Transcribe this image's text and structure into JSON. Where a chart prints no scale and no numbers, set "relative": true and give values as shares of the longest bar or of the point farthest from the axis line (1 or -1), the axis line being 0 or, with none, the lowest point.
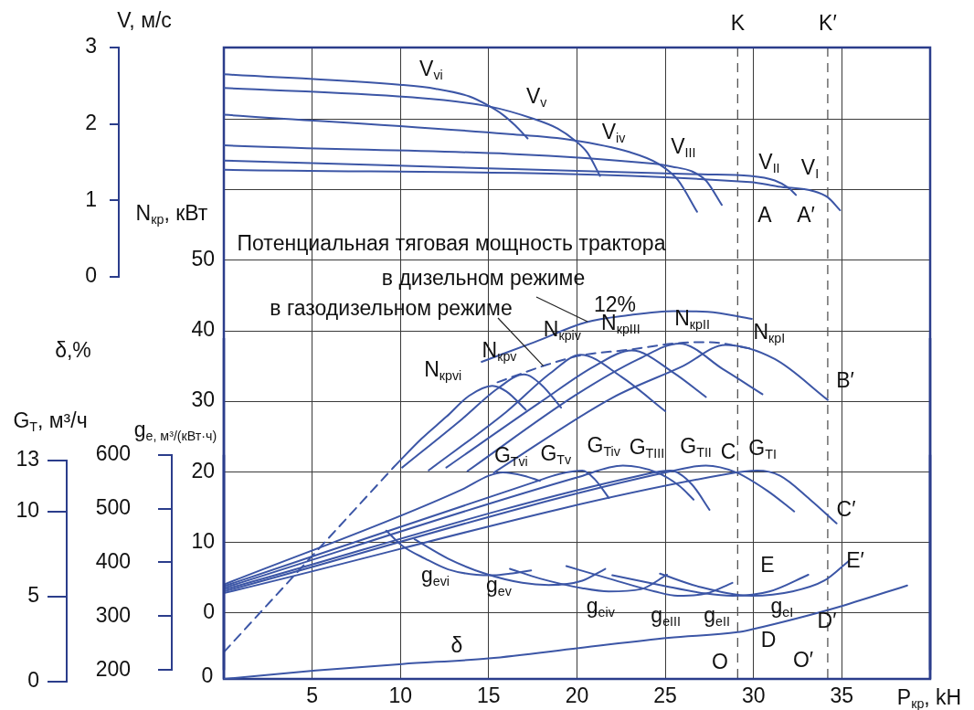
{
  "chart_data": [
    {
      "type": "line",
      "xlabel": "P$_{кр}$, kH",
      "ylabel": "N$_{кр}$, кВт",
      "y2label": "V, м/с",
      "y3label": "G$_{T}$, м³/ч",
      "xlim": [
        0,
        40
      ],
      "xticks": [
        5,
        10,
        15,
        20,
        25,
        30,
        35
      ],
      "ylim": [
        -9.4,
        80.2
      ],
      "yticks": [
        0,
        10,
        20,
        30,
        40,
        50,
        {
          "value": 60,
          "label": null
        },
        {
          "value": 70,
          "label": null
        }
      ],
      "y2lim": [
        0,
        3
      ],
      "y2ticks": [
        0,
        1,
        2,
        3
      ],
      "y3lim": [
        0,
        13
      ],
      "y3ticks": [
        0,
        5,
        10,
        13
      ],
      "grid": true,
      "marker": "none",
      "ref_lines": [
        {
          "axis": "x",
          "value": 29.1,
          "label": "K",
          "color": "#555555",
          "line_style": "dashed"
        },
        {
          "axis": "x",
          "value": 34.2,
          "label": "K′",
          "color": "#555555",
          "line_style": "dashed"
        }
      ],
      "series": [
        {
          "name": "V$_{vi}$",
          "axis": "y2",
          "color": "#3c56a6",
          "x": [
            0,
            10.1,
            12.0,
            13.9,
            14.9,
            15.8,
            16.5,
            17.2
          ],
          "values": [
            2.65,
            2.51,
            2.46,
            2.36,
            2.25,
            2.12,
            1.98,
            1.81
          ]
        },
        {
          "name": "V$_{v}$",
          "axis": "y2",
          "color": "#3c56a6",
          "x": [
            0,
            10.5,
            15.0,
            17.5,
            18.9,
            19.9,
            20.6,
            21.3
          ],
          "values": [
            2.47,
            2.35,
            2.23,
            2.07,
            1.94,
            1.78,
            1.62,
            1.32
          ]
        },
        {
          "name": "V$_{iv}$",
          "axis": "y2",
          "color": "#3c56a6",
          "x": [
            0,
            16.0,
            19.7,
            23.0,
            24.6,
            25.7,
            26.8
          ],
          "values": [
            2.12,
            1.87,
            1.79,
            1.63,
            1.48,
            1.27,
            0.85
          ]
        },
        {
          "name": "V$_{III}$",
          "axis": "y2",
          "color": "#3c56a6",
          "x": [
            0,
            24.3,
            25.4,
            26.5,
            27.3,
            28.2
          ],
          "values": [
            1.72,
            1.48,
            1.44,
            1.38,
            1.26,
            0.94
          ]
        },
        {
          "name": "V$_{II}$",
          "axis": "y2",
          "color": "#3c56a6",
          "x": [
            0,
            27.1,
            29.8,
            31.2,
            32.0,
            32.4
          ],
          "values": [
            1.52,
            1.34,
            1.32,
            1.26,
            1.16,
            1.07
          ]
        },
        {
          "name": "V$_{I}$",
          "axis": "y2",
          "color": "#3c56a6",
          "x": [
            0,
            29.8,
            31.4,
            33.4,
            34.2,
            34.9
          ],
          "values": [
            1.4,
            1.24,
            1.18,
            1.12,
            1.04,
            0.87
          ]
        },
        {
          "color": "#3c56a6",
          "x": [
            14.6,
            17.6,
            20.5,
            22.9,
            25.5,
            27.4,
            29.9
          ],
          "values": [
            35.6,
            38.4,
            41.2,
            42.2,
            42.8,
            42.7,
            41.7
          ]
        },
        {
          "color": "#3c56a6",
          "line_style": "dashed",
          "x": [
            15.5,
            18.2,
            20.2,
            22.9,
            25.5,
            27.4,
            29.8
          ],
          "values": [
            32.7,
            35.1,
            36.5,
            37.3,
            38.2,
            38.4,
            37.5
          ]
        },
        {
          "name": "N$_{крvi}$",
          "color": "#3c56a6",
          "x": [
            9.6,
            11.2,
            12.6,
            13.9,
            15.2,
            16.0,
            17.1
          ],
          "values": [
            20.6,
            24.7,
            27.8,
            30.8,
            32.2,
            31.4,
            28.8
          ]
        },
        {
          "name": "N$_{крv}$",
          "color": "#3c56a6",
          "x": [
            10.1,
            13.5,
            15.5,
            17.0,
            18.0,
            19.1
          ],
          "values": [
            20.6,
            27.5,
            31.8,
            33.8,
            32.3,
            29.1
          ]
        },
        {
          "name": "N$_{крiv}$",
          "color": "#3c56a6",
          "x": [
            11.6,
            16.0,
            18.5,
            20.2,
            22.5,
            25.0
          ],
          "values": [
            20.2,
            28.5,
            34.0,
            36.6,
            33.5,
            28.6
          ]
        },
        {
          "name": "N$_{крIII}$",
          "color": "#3c56a6",
          "x": [
            12.6,
            18.0,
            21.0,
            23.1,
            25.5,
            27.3
          ],
          "values": [
            20.6,
            30.0,
            35.0,
            37.2,
            34.0,
            30.6
          ]
        },
        {
          "name": "N$_{крII}$",
          "color": "#3c56a6",
          "x": [
            13.8,
            20.0,
            23.5,
            25.8,
            28.3,
            30.5
          ],
          "values": [
            20.1,
            31.0,
            36.0,
            38.2,
            34.5,
            31.0
          ]
        },
        {
          "name": "N$_{крI}$",
          "color": "#3c56a6",
          "x": [
            15.3,
            22.0,
            26.0,
            28.4,
            31.2,
            34.2
          ],
          "values": [
            19.9,
            30.5,
            35.0,
            38.0,
            36.0,
            30.2
          ]
        },
        {
          "color": "#3c56a6",
          "line_style": "dashed",
          "x": [
            0,
            9.6
          ],
          "values": [
            -5.6,
            20.6
          ]
        },
        {
          "name": "G$_{Tvi}$",
          "axis": "y3",
          "color": "#3c56a6",
          "x": [
            0,
            13.5,
            15.0,
            15.8,
            17.0,
            17.9
          ],
          "values": [
            5.7,
            11.3,
            12.1,
            12.3,
            12.1,
            11.8
          ]
        },
        {
          "name": "G$_{Tv}$",
          "axis": "y3",
          "color": "#3c56a6",
          "x": [
            0,
            17.5,
            19.0,
            20.3,
            21.0,
            21.8
          ],
          "values": [
            5.6,
            11.7,
            12.2,
            12.4,
            11.9,
            10.8
          ]
        },
        {
          "name": "G$_{Tiv}$",
          "axis": "y3",
          "color": "#3c56a6",
          "x": [
            0,
            20.0,
            22.6,
            24.5,
            25.8,
            26.6
          ],
          "values": [
            5.5,
            12.0,
            12.7,
            12.3,
            11.5,
            10.7
          ]
        },
        {
          "name": "G$_{TIII}$",
          "axis": "y3",
          "color": "#3c56a6",
          "x": [
            0,
            23.5,
            25.3,
            26.5,
            27.5
          ],
          "values": [
            5.4,
            12.1,
            12.4,
            11.6,
            10.1
          ]
        },
        {
          "name": "G$_{TII}$",
          "axis": "y3",
          "color": "#3c56a6",
          "x": [
            0,
            25.5,
            27.3,
            29.0,
            30.8,
            32.3
          ],
          "values": [
            5.3,
            12.4,
            12.7,
            12.3,
            11.2,
            10.0
          ]
        },
        {
          "name": "G$_{TI}$",
          "axis": "y3",
          "color": "#3c56a6",
          "x": [
            0,
            28.5,
            30.2,
            31.5,
            33.2,
            34.7
          ],
          "values": [
            5.2,
            12.2,
            12.4,
            12.1,
            10.7,
            9.3
          ]
        }
      ],
      "annotations": [
        "A",
        "A′",
        "Потенциальная тяговая мощность трактора",
        {
          "text": "в дизельном режиме",
          "x": 20.6,
          "y": 41.3
        },
        {
          "text": "в газодизельном режиме",
          "x": 18.1,
          "y": 35.0
        },
        "12%",
        "B′",
        "C",
        "C′"
      ]
    },
    {
      "type": "line",
      "ylabel": "g$_{e, м³/(кВт·ч)}$",
      "xlim": [
        0,
        40
      ],
      "ylim": [
        200,
        600
      ],
      "yticks": [
        200,
        300,
        400,
        500,
        600
      ],
      "tick_labels": "y",
      "marker": "none",
      "series": [
        {
          "name": "g$_{evi}$",
          "color": "#3c56a6",
          "x": [
            9.2,
            10.1,
            11.4,
            12.7,
            14.3,
            15.3,
            16.2,
            17.4
          ],
          "values": [
            459,
            431,
            407,
            387,
            377,
            376,
            379,
            385
          ]
        },
        {
          "name": "g$_{ev}$",
          "color": "#3c56a6",
          "x": [
            10.8,
            12.7,
            14.8,
            16.9,
            18.4,
            20.3,
            21.6
          ],
          "values": [
            443,
            407,
            379,
            362,
            358,
            366,
            388
          ]
        },
        {
          "name": "g$_{eiv}$",
          "color": "#3c56a6",
          "x": [
            16.2,
            17.9,
            20.3,
            21.8,
            23.6,
            25.1
          ],
          "values": [
            388,
            370,
            352,
            346,
            350,
            377
          ]
        },
        {
          "name": "g$_{eIII}$",
          "color": "#3c56a6",
          "x": [
            19.4,
            21.8,
            24.4,
            25.7,
            27.3,
            28.8
          ],
          "values": [
            393,
            370,
            346,
            338,
            342,
            362
          ]
        },
        {
          "name": "g$_{eII}$",
          "color": "#3c56a6",
          "x": [
            22.0,
            24.7,
            27.3,
            28.8,
            30.9,
            33.1
          ],
          "values": [
            376,
            358,
            342,
            338,
            346,
            377
          ]
        },
        {
          "name": "g$_{eI}$",
          "color": "#3c56a6",
          "x": [
            24.7,
            27.0,
            29.9,
            32.2,
            34.0,
            35.4
          ],
          "values": [
            379,
            354,
            338,
            346,
            366,
            403
          ]
        }
      ],
      "annotations": [
        "E",
        "E′"
      ]
    },
    {
      "type": "line",
      "relative": true,
      "xlim": [
        0,
        40
      ],
      "tick_labels": false,
      "marker": "none",
      "series": [
        {
          "name": "δ",
          "color": "#3c56a6",
          "x": [
            0,
            5.2,
            10.1,
            15.0,
            20.1,
            25.2,
            29.1,
            29.9,
            32.5,
            35.0,
            38.7
          ],
          "values": [
            0,
            0.09,
            0.16,
            0.22,
            0.33,
            0.44,
            0.5,
            0.53,
            0.65,
            0.78,
            1
          ]
        }
      ],
      "annotations": [
        "δ,%",
        "0",
        "D",
        "D′",
        "O",
        "O′"
      ]
    }
  ]
}
